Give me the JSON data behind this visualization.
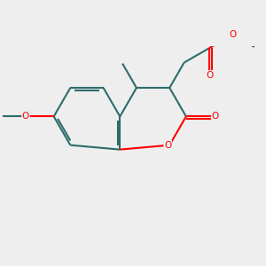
{
  "bg_color": "#eeeeee",
  "bond_color": "#2d6b6b",
  "heteroatom_color": "#ff0000",
  "bond_width": 1.5,
  "figsize": [
    3.0,
    3.0
  ],
  "dpi": 100,
  "xlim": [
    -1.5,
    1.5
  ],
  "ylim": [
    -1.0,
    1.0
  ]
}
